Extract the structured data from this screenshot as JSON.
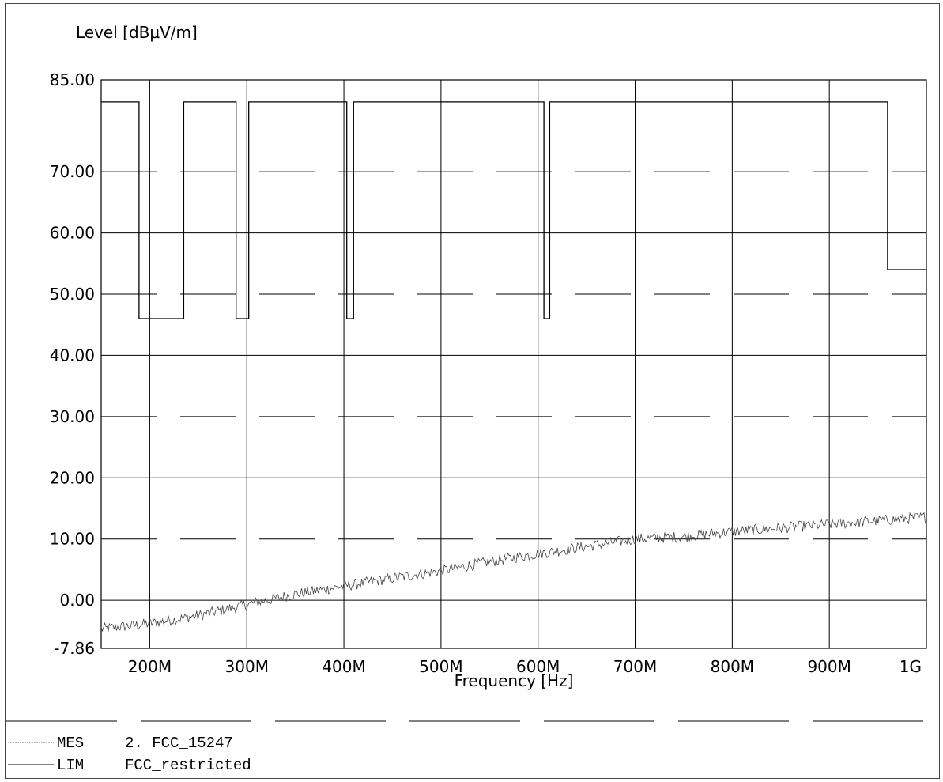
{
  "chart_data": {
    "type": "line",
    "ylabel": "Level [dBµV/m]",
    "xlabel": "Frequency [Hz]",
    "xlim": [
      150,
      1000
    ],
    "ylim": [
      -7.86,
      85.0
    ],
    "y_ticks": [
      {
        "value": 85.0,
        "label": "85.00"
      },
      {
        "value": 70.0,
        "label": "70.00"
      },
      {
        "value": 60.0,
        "label": "60.00"
      },
      {
        "value": 50.0,
        "label": "50.00"
      },
      {
        "value": 40.0,
        "label": "40.00"
      },
      {
        "value": 30.0,
        "label": "30.00"
      },
      {
        "value": 20.0,
        "label": "20.00"
      },
      {
        "value": 10.0,
        "label": "10.00"
      },
      {
        "value": 0.0,
        "label": "0.00"
      },
      {
        "value": -7.86,
        "label": "-7.86"
      }
    ],
    "x_ticks": [
      {
        "value": 200,
        "label": "200M"
      },
      {
        "value": 300,
        "label": "300M"
      },
      {
        "value": 400,
        "label": "400M"
      },
      {
        "value": 500,
        "label": "500M"
      },
      {
        "value": 600,
        "label": "600M"
      },
      {
        "value": 700,
        "label": "700M"
      },
      {
        "value": 800,
        "label": "800M"
      },
      {
        "value": 900,
        "label": "900M"
      },
      {
        "value": 1000,
        "label": "1G"
      }
    ],
    "series": [
      {
        "name": "FCC_restricted",
        "style": "step",
        "x": [
          150,
          189,
          189,
          235,
          235,
          289,
          289,
          302,
          302,
          403,
          403,
          410,
          410,
          606,
          606,
          612,
          612,
          960,
          960,
          1000
        ],
        "y": [
          81.4,
          81.4,
          46.0,
          46.0,
          81.4,
          81.4,
          46.0,
          46.0,
          81.4,
          81.4,
          46.0,
          46.0,
          81.4,
          81.4,
          46.0,
          46.0,
          81.4,
          81.4,
          54.0,
          54.0
        ]
      },
      {
        "name": "2. FCC_15247",
        "style": "noisy",
        "x": [
          150,
          200,
          250,
          300,
          350,
          400,
          450,
          500,
          550,
          600,
          650,
          700,
          750,
          800,
          850,
          900,
          950,
          1000
        ],
        "y": [
          -4.7,
          -3.8,
          -2.5,
          -0.7,
          1.0,
          2.3,
          3.6,
          4.8,
          6.3,
          7.6,
          8.8,
          10.0,
          10.4,
          11.2,
          11.8,
          12.4,
          13.0,
          13.6
        ]
      }
    ],
    "lines_every_other_dashed": true,
    "legend": [
      {
        "code": "MES",
        "text": "2. FCC_15247"
      },
      {
        "code": "LIM",
        "text": "FCC_restricted"
      }
    ]
  }
}
